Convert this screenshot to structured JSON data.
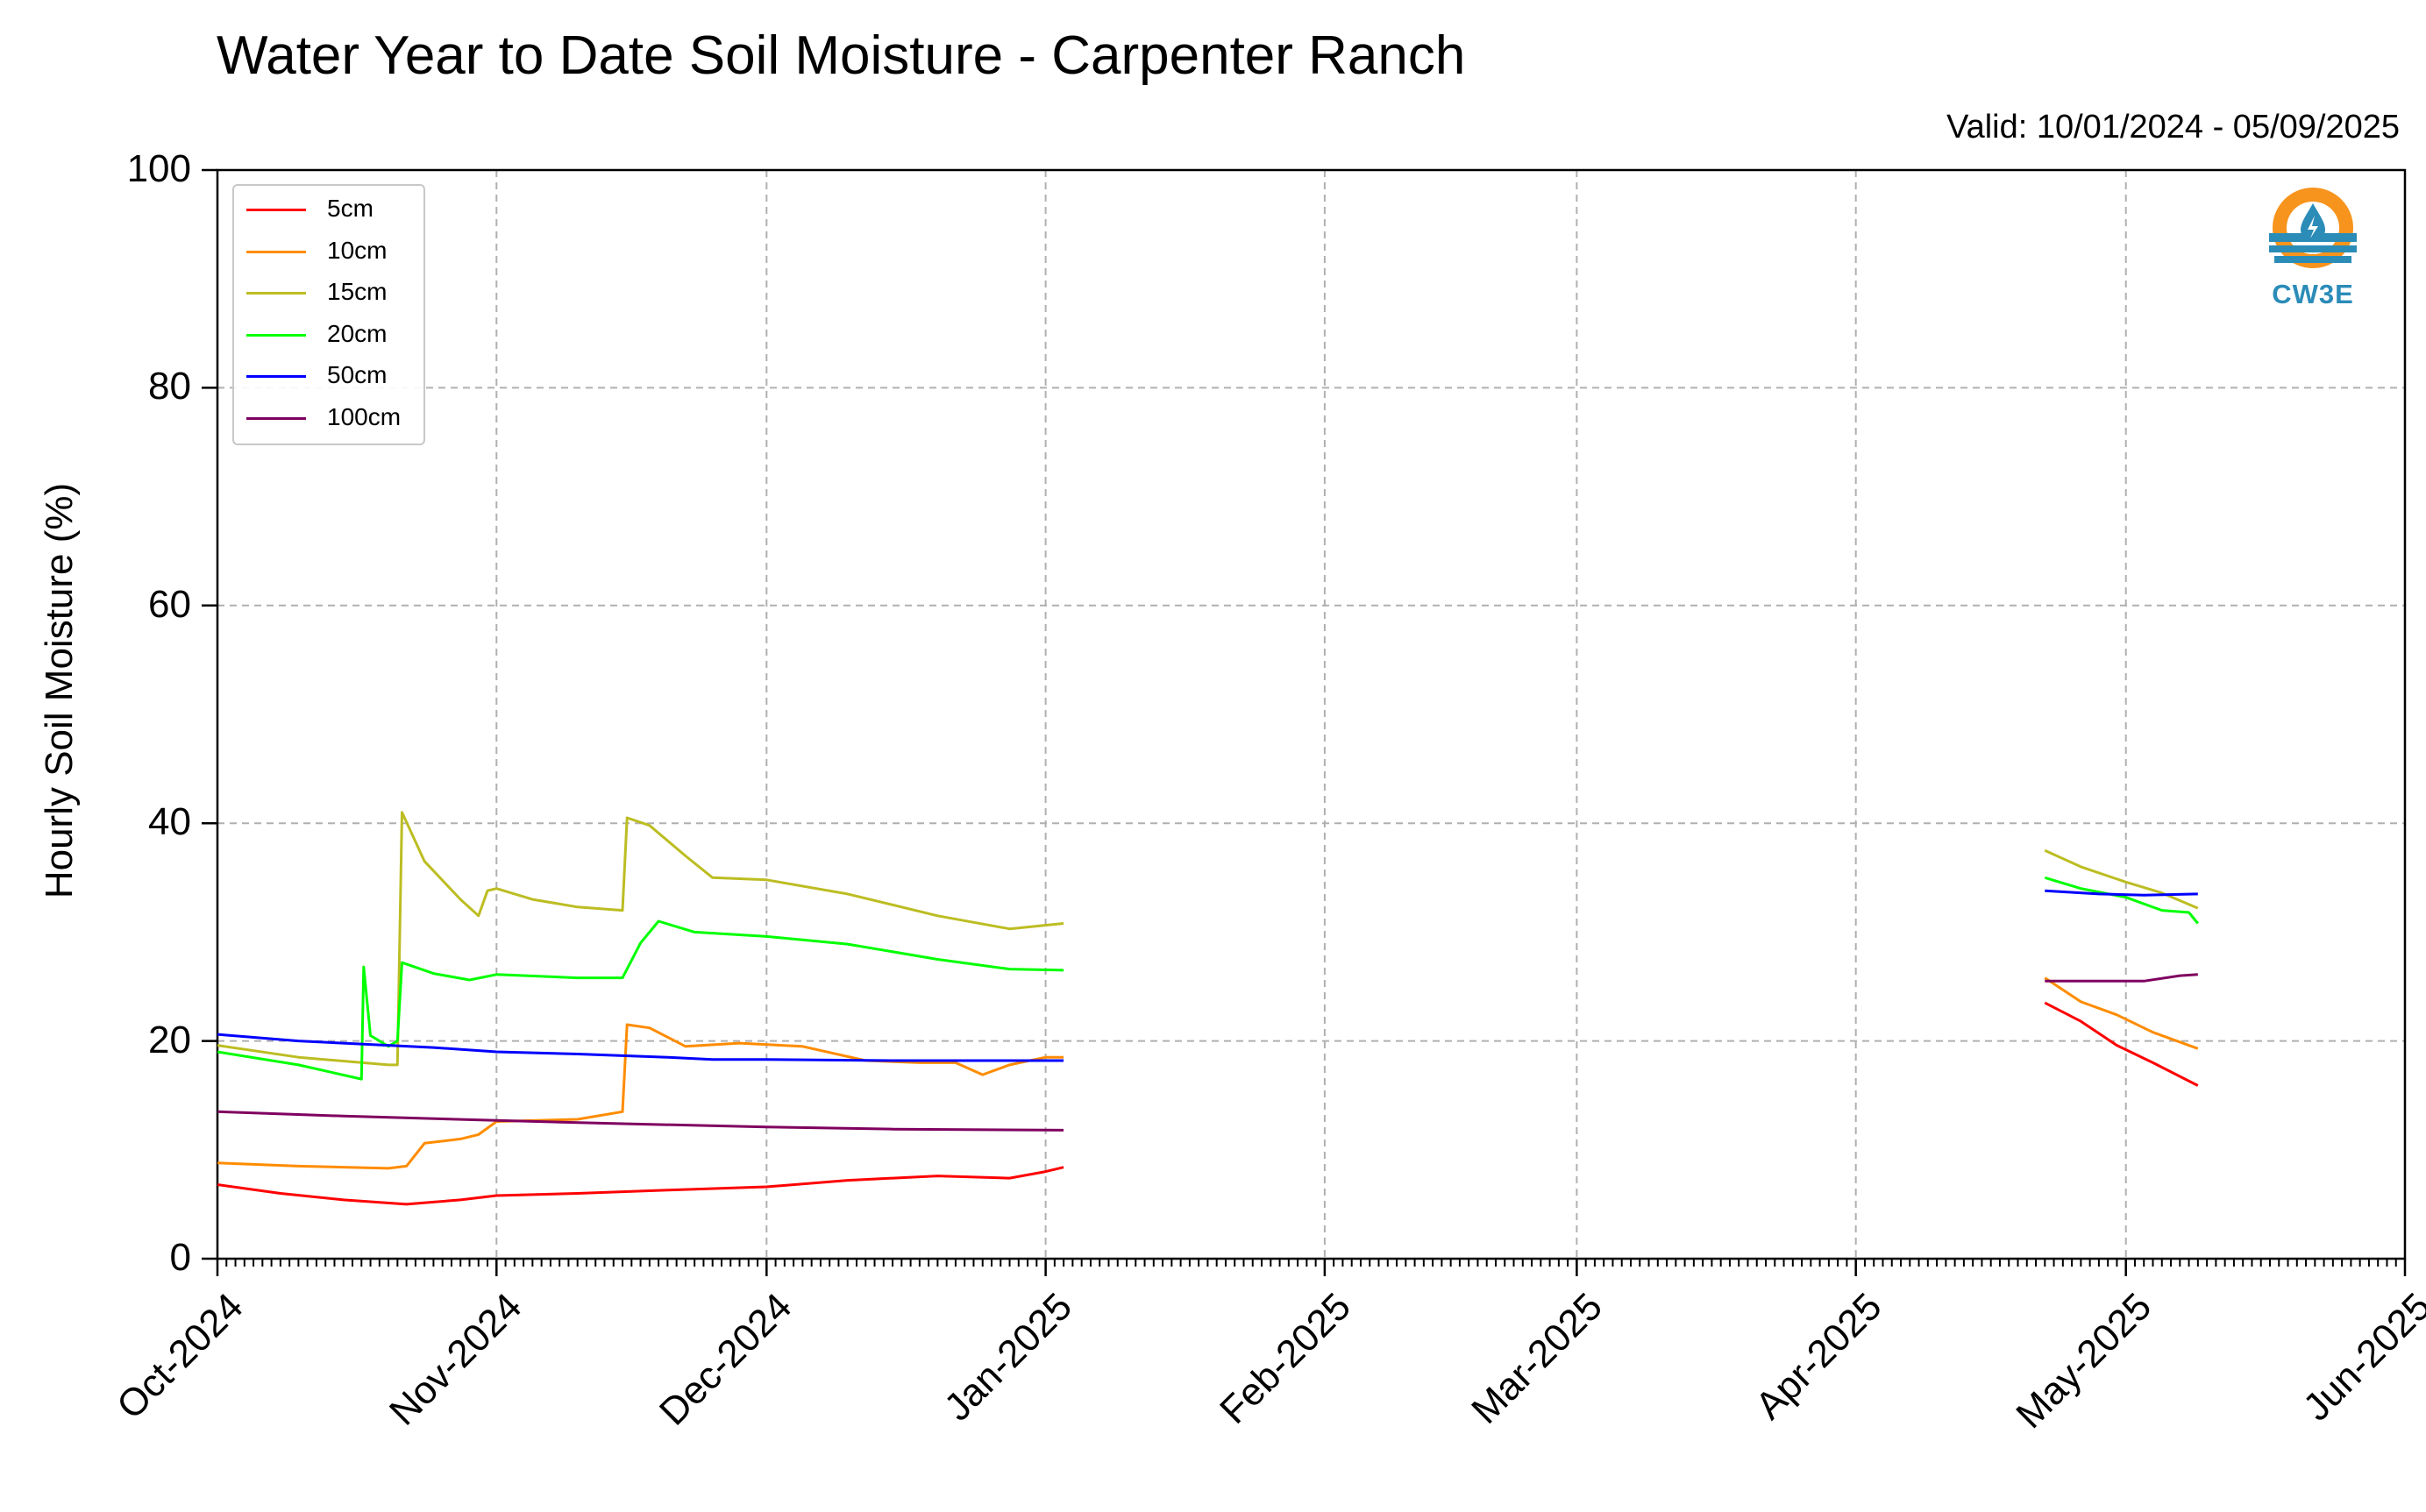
{
  "chart_data": {
    "type": "line",
    "title": "Water Year to Date Soil Moisture - Carpenter Ranch",
    "subtitle": "Valid: 10/01/2024 - 05/09/2025",
    "ylabel": "Hourly Soil Moisture (%)",
    "xlabel": "",
    "ylim": [
      0,
      100
    ],
    "xlim": [
      "2024-10-01",
      "2025-06-01"
    ],
    "yticks": [
      0,
      20,
      40,
      60,
      80,
      100
    ],
    "xticks": [
      "2024-10-01",
      "2024-11-01",
      "2024-12-01",
      "2025-01-01",
      "2025-02-01",
      "2025-03-01",
      "2025-04-01",
      "2025-05-01",
      "2025-06-01"
    ],
    "xtick_labels": [
      "Oct-2024",
      "Nov-2024",
      "Dec-2024",
      "Jan-2025",
      "Feb-2025",
      "Mar-2025",
      "Apr-2025",
      "May-2025",
      "Jun-2025"
    ],
    "grid": true,
    "legend_position": "top-left",
    "series": [
      {
        "name": "5cm",
        "color": "#ff0000",
        "segments": [
          [
            [
              "2024-10-01",
              6.8
            ],
            [
              "2024-10-08",
              6.0
            ],
            [
              "2024-10-15",
              5.4
            ],
            [
              "2024-10-22",
              5.0
            ],
            [
              "2024-10-25",
              5.2
            ],
            [
              "2024-10-28",
              5.4
            ],
            [
              "2024-11-01",
              5.8
            ],
            [
              "2024-11-10",
              6.0
            ],
            [
              "2024-11-20",
              6.3
            ],
            [
              "2024-12-01",
              6.6
            ],
            [
              "2024-12-10",
              7.2
            ],
            [
              "2024-12-20",
              7.6
            ],
            [
              "2024-12-28",
              7.4
            ],
            [
              "2025-01-01",
              8.0
            ],
            [
              "2025-01-03",
              8.4
            ]
          ],
          [
            [
              "2025-04-22",
              23.5
            ],
            [
              "2025-04-26",
              21.8
            ],
            [
              "2025-04-30",
              19.6
            ],
            [
              "2025-05-04",
              18.0
            ],
            [
              "2025-05-09",
              15.9
            ]
          ]
        ]
      },
      {
        "name": "10cm",
        "color": "#ff8c00",
        "segments": [
          [
            [
              "2024-10-01",
              8.8
            ],
            [
              "2024-10-10",
              8.5
            ],
            [
              "2024-10-20",
              8.3
            ],
            [
              "2024-10-22",
              8.5
            ],
            [
              "2024-10-24",
              10.6
            ],
            [
              "2024-10-28",
              11.0
            ],
            [
              "2024-10-30",
              11.4
            ],
            [
              "2024-11-01",
              12.6
            ],
            [
              "2024-11-10",
              12.8
            ],
            [
              "2024-11-15",
              13.5
            ],
            [
              "2024-11-15T12",
              21.5
            ],
            [
              "2024-11-18",
              21.2
            ],
            [
              "2024-11-22",
              19.5
            ],
            [
              "2024-11-28",
              19.8
            ],
            [
              "2024-12-05",
              19.5
            ],
            [
              "2024-12-12",
              18.2
            ],
            [
              "2024-12-18",
              18.0
            ],
            [
              "2024-12-22",
              18.0
            ],
            [
              "2024-12-25",
              16.9
            ],
            [
              "2024-12-28",
              17.8
            ],
            [
              "2025-01-01",
              18.5
            ],
            [
              "2025-01-03",
              18.5
            ]
          ],
          [
            [
              "2025-04-22",
              25.8
            ],
            [
              "2025-04-26",
              23.6
            ],
            [
              "2025-04-30",
              22.4
            ],
            [
              "2025-05-04",
              20.8
            ],
            [
              "2025-05-09",
              19.3
            ]
          ]
        ]
      },
      {
        "name": "15cm",
        "color": "#bcbd22",
        "segments": [
          [
            [
              "2024-10-01",
              19.6
            ],
            [
              "2024-10-10",
              18.5
            ],
            [
              "2024-10-20",
              17.8
            ],
            [
              "2024-10-21",
              17.8
            ],
            [
              "2024-10-21T12",
              41.0
            ],
            [
              "2024-10-24",
              36.5
            ],
            [
              "2024-10-28",
              33.0
            ],
            [
              "2024-10-30",
              31.5
            ],
            [
              "2024-10-31",
              33.8
            ],
            [
              "2024-11-01",
              34.0
            ],
            [
              "2024-11-05",
              33.0
            ],
            [
              "2024-11-10",
              32.3
            ],
            [
              "2024-11-15",
              32.0
            ],
            [
              "2024-11-15T12",
              40.5
            ],
            [
              "2024-11-18",
              39.8
            ],
            [
              "2024-11-22",
              37.0
            ],
            [
              "2024-11-25",
              35.0
            ],
            [
              "2024-12-01",
              34.8
            ],
            [
              "2024-12-10",
              33.5
            ],
            [
              "2024-12-20",
              31.5
            ],
            [
              "2024-12-28",
              30.3
            ],
            [
              "2025-01-03",
              30.8
            ]
          ],
          [
            [
              "2025-04-22",
              37.5
            ],
            [
              "2025-04-26",
              36.0
            ],
            [
              "2025-05-01",
              34.6
            ],
            [
              "2025-05-05",
              33.6
            ],
            [
              "2025-05-09",
              32.2
            ]
          ]
        ]
      },
      {
        "name": "20cm",
        "color": "#00ff00",
        "segments": [
          [
            [
              "2024-10-01",
              19.0
            ],
            [
              "2024-10-10",
              17.8
            ],
            [
              "2024-10-17",
              16.5
            ],
            [
              "2024-10-17T06",
              26.8
            ],
            [
              "2024-10-18",
              20.5
            ],
            [
              "2024-10-20",
              19.5
            ],
            [
              "2024-10-21",
              20.0
            ],
            [
              "2024-10-21T12",
              27.2
            ],
            [
              "2024-10-25",
              26.2
            ],
            [
              "2024-10-29",
              25.6
            ],
            [
              "2024-11-01",
              26.1
            ],
            [
              "2024-11-10",
              25.8
            ],
            [
              "2024-11-15",
              25.8
            ],
            [
              "2024-11-17",
              29.0
            ],
            [
              "2024-11-19",
              31.0
            ],
            [
              "2024-11-23",
              30.0
            ],
            [
              "2024-12-01",
              29.6
            ],
            [
              "2024-12-10",
              28.9
            ],
            [
              "2024-12-20",
              27.5
            ],
            [
              "2024-12-28",
              26.6
            ],
            [
              "2025-01-03",
              26.5
            ]
          ],
          [
            [
              "2025-04-22",
              35.0
            ],
            [
              "2025-04-26",
              34.0
            ],
            [
              "2025-05-01",
              33.2
            ],
            [
              "2025-05-05",
              32.0
            ],
            [
              "2025-05-08",
              31.8
            ],
            [
              "2025-05-09",
              30.8
            ]
          ]
        ]
      },
      {
        "name": "50cm",
        "color": "#0000ff",
        "segments": [
          [
            [
              "2024-10-01",
              20.6
            ],
            [
              "2024-10-10",
              20.0
            ],
            [
              "2024-10-20",
              19.6
            ],
            [
              "2024-10-25",
              19.4
            ],
            [
              "2024-11-01",
              19.0
            ],
            [
              "2024-11-10",
              18.8
            ],
            [
              "2024-11-20",
              18.5
            ],
            [
              "2024-11-25",
              18.3
            ],
            [
              "2024-12-01",
              18.3
            ],
            [
              "2024-12-15",
              18.2
            ],
            [
              "2025-01-03",
              18.2
            ]
          ],
          [
            [
              "2025-04-22",
              33.8
            ],
            [
              "2025-04-28",
              33.5
            ],
            [
              "2025-05-03",
              33.4
            ],
            [
              "2025-05-09",
              33.5
            ]
          ]
        ]
      },
      {
        "name": "100cm",
        "color": "#7f0060",
        "segments": [
          [
            [
              "2024-10-01",
              13.5
            ],
            [
              "2024-10-15",
              13.1
            ],
            [
              "2024-11-01",
              12.7
            ],
            [
              "2024-11-15",
              12.4
            ],
            [
              "2024-12-01",
              12.1
            ],
            [
              "2024-12-15",
              11.9
            ],
            [
              "2025-01-03",
              11.8
            ]
          ],
          [
            [
              "2025-04-22",
              25.5
            ],
            [
              "2025-04-28",
              25.5
            ],
            [
              "2025-05-03",
              25.5
            ],
            [
              "2025-05-07",
              26.0
            ],
            [
              "2025-05-09",
              26.1
            ]
          ]
        ]
      }
    ]
  },
  "logo": {
    "text": "CW3E",
    "colors": {
      "ring": "#f7941d",
      "waves": "#2b8cb8"
    }
  }
}
